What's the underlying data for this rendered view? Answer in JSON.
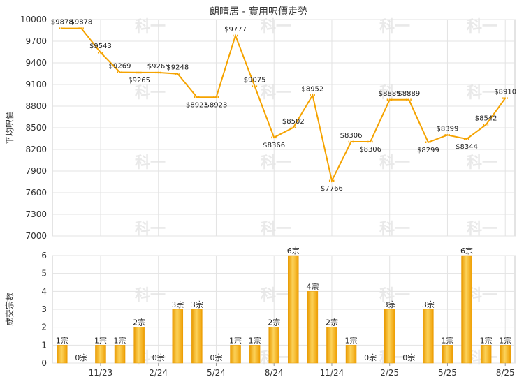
{
  "title": "朗晴居 - 實用呎價走勢",
  "watermark": "科一",
  "chart_data": [
    {
      "type": "line",
      "ylabel": "平均呎價",
      "ylim": [
        7000,
        10000
      ],
      "yticks": [
        7000,
        7300,
        7600,
        7900,
        8200,
        8500,
        8800,
        9100,
        9400,
        9700,
        10000
      ],
      "color": "#f5a300",
      "values": [
        9878,
        9878,
        9543,
        9269,
        9265,
        9265,
        9248,
        8923,
        8923,
        9777,
        9075,
        8366,
        8502,
        8952,
        7766,
        8306,
        8306,
        8889,
        8889,
        8299,
        8399,
        8344,
        8542,
        8910
      ],
      "data_labels": [
        "$9878",
        "$9878",
        "$9543",
        "$9269",
        "$9265",
        "$9265",
        "$9248",
        "$8923",
        "$8923",
        "$9777",
        "$9075",
        "$8366",
        "$8502",
        "$8952",
        "$7766",
        "$8306",
        "$8306",
        "$8889",
        "$8889",
        "$8299",
        "$8399",
        "$8344",
        "$8542",
        "$8910"
      ],
      "grid": true
    },
    {
      "type": "bar",
      "ylabel": "成交宗數",
      "ylim": [
        0,
        6
      ],
      "yticks": [
        0,
        1,
        2,
        3,
        4,
        5,
        6
      ],
      "color": "#f5b21a",
      "values": [
        1,
        0,
        1,
        1,
        2,
        0,
        3,
        3,
        0,
        1,
        1,
        2,
        6,
        4,
        2,
        1,
        0,
        3,
        0,
        3,
        1,
        6,
        1,
        1
      ],
      "data_labels": [
        "1宗",
        "0宗",
        "1宗",
        "1宗",
        "2宗",
        "0宗",
        "3宗",
        "3宗",
        "0宗",
        "1宗",
        "1宗",
        "2宗",
        "6宗",
        "4宗",
        "2宗",
        "1宗",
        "0宗",
        "3宗",
        "0宗",
        "3宗",
        "1宗",
        "6宗",
        "1宗",
        "1宗"
      ],
      "xticks": [
        "11/23",
        "2/24",
        "5/24",
        "8/24",
        "11/24",
        "2/25",
        "5/25",
        "8/25"
      ],
      "grid": true
    }
  ]
}
